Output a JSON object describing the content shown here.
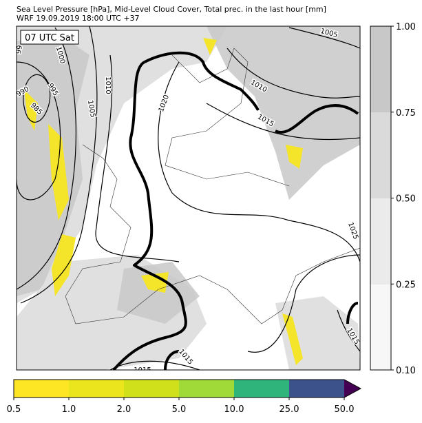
{
  "header": {
    "title": "Sea Level Pressure [hPa], Mid-Level Cloud Cover, Total prec. in the last hour [mm]",
    "subtitle": "WRF 19.09.2019 18:00 UTC +37"
  },
  "map": {
    "time_label": "07 UTC Sat",
    "isobar_labels": [
      "99",
      "990",
      "985",
      "995",
      "1000",
      "1010",
      "1005",
      "1020",
      "1010",
      "1015",
      "1005",
      "1025",
      "1015",
      "1015",
      "1015"
    ]
  },
  "cloud_colorbar": {
    "ticks": [
      "0.10",
      "0.25",
      "0.50",
      "0.75",
      "1.00"
    ]
  },
  "precip_colorbar": {
    "ticks": [
      "0.5",
      "1.0",
      "2.0",
      "5.0",
      "10.0",
      "25.0",
      "50.0"
    ]
  }
}
